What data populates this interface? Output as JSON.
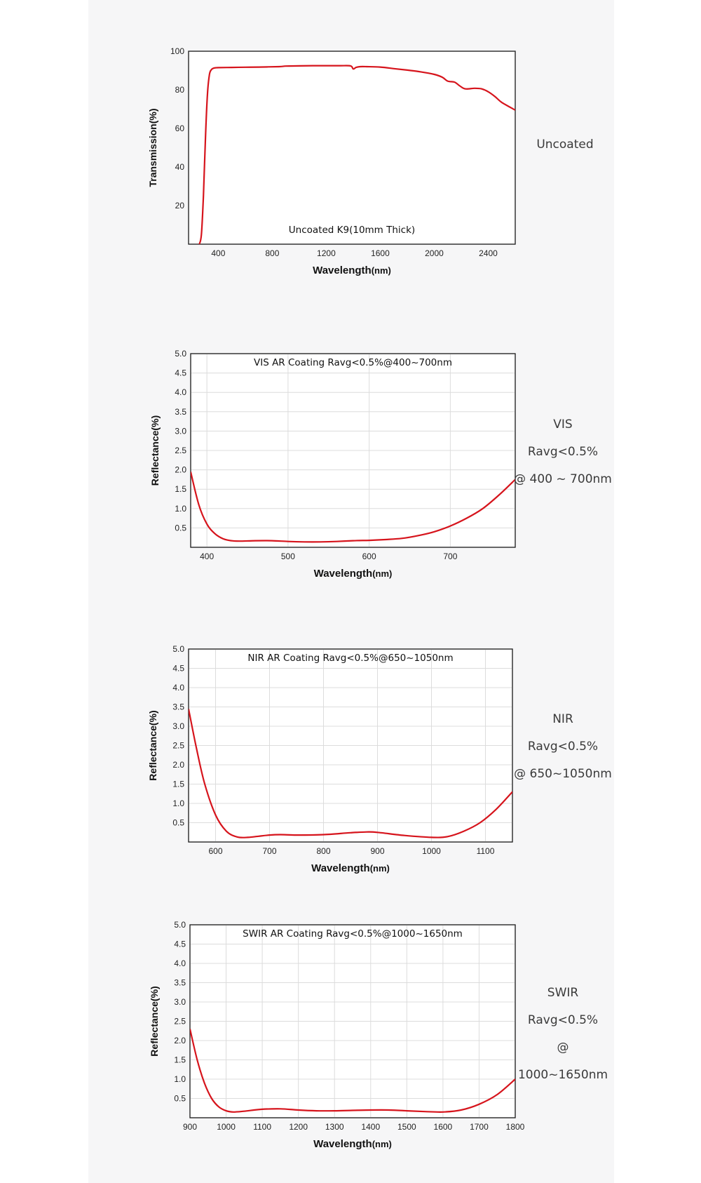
{
  "chart_data": [
    {
      "type": "line",
      "title": "Uncoated K9(10mm Thick)",
      "xlabel": "Wavelength",
      "xunit": "(nm)",
      "ylabel": "Transmission(%)",
      "side_label": [
        "Uncoated"
      ],
      "xlim": [
        180,
        2600
      ],
      "ylim": [
        0,
        100
      ],
      "xticks": [
        400,
        800,
        1200,
        1600,
        2000,
        2400
      ],
      "yticks": [
        20,
        40,
        60,
        80,
        100
      ],
      "ytick_labels": [
        "20",
        "40",
        "60",
        "80",
        "100"
      ],
      "grid": false,
      "series": [
        {
          "color": "#d6141c",
          "x": [
            260,
            275,
            290,
            305,
            320,
            335,
            350,
            365,
            380,
            400,
            500,
            600,
            700,
            850,
            900,
            1000,
            1100,
            1200,
            1300,
            1380,
            1400,
            1420,
            1450,
            1500,
            1600,
            1700,
            1800,
            1900,
            2000,
            2060,
            2100,
            2150,
            2190,
            2230,
            2300,
            2350,
            2400,
            2450,
            2500,
            2600
          ],
          "y": [
            0,
            5,
            25,
            55,
            78,
            88,
            90.5,
            91.2,
            91.4,
            91.5,
            91.6,
            91.7,
            91.8,
            92,
            92.3,
            92.4,
            92.5,
            92.5,
            92.5,
            92.4,
            90.8,
            91.6,
            92,
            92,
            91.8,
            91,
            90.2,
            89.3,
            88,
            86.5,
            84.5,
            84,
            82,
            80.5,
            80.8,
            80.5,
            79,
            76.5,
            73.5,
            69.5
          ]
        }
      ]
    },
    {
      "type": "line",
      "title": "VIS AR Coating Ravg<0.5%@400~700nm",
      "xlabel": "Wavelength",
      "xunit": "(nm)",
      "ylabel": "Reflectance(%)",
      "side_label": [
        "VIS",
        "Ravg<0.5%",
        "@ 400 ~ 700nm"
      ],
      "xlim": [
        380,
        780
      ],
      "ylim": [
        0,
        5
      ],
      "xticks": [
        400,
        500,
        600,
        700
      ],
      "yticks": [
        0.5,
        1,
        1.5,
        2,
        2.5,
        3,
        3.5,
        4,
        4.5,
        5
      ],
      "ytick_labels": [
        "0.5",
        "1.0",
        "1.5",
        "2.0",
        "2.5",
        "3.0",
        "3.5",
        "4.0",
        "4.5",
        "5.0"
      ],
      "grid": true,
      "series": [
        {
          "color": "#d6141c",
          "x": [
            380,
            390,
            400,
            410,
            420,
            430,
            440,
            460,
            480,
            500,
            520,
            540,
            560,
            580,
            600,
            620,
            640,
            660,
            680,
            700,
            720,
            740,
            760,
            780
          ],
          "y": [
            1.95,
            1.1,
            0.6,
            0.35,
            0.22,
            0.17,
            0.16,
            0.17,
            0.17,
            0.15,
            0.14,
            0.14,
            0.15,
            0.17,
            0.18,
            0.2,
            0.23,
            0.3,
            0.4,
            0.55,
            0.75,
            1.0,
            1.35,
            1.75
          ]
        }
      ]
    },
    {
      "type": "line",
      "title": "NIR AR Coating Ravg<0.5%@650~1050nm",
      "xlabel": "Wavelength",
      "xunit": "(nm)",
      "ylabel": "Reflectance(%)",
      "side_label": [
        "NIR",
        "Ravg<0.5%",
        "@ 650~1050nm"
      ],
      "xlim": [
        550,
        1150
      ],
      "ylim": [
        0,
        5
      ],
      "xticks": [
        600,
        700,
        800,
        900,
        1000,
        1100
      ],
      "yticks": [
        0.5,
        1,
        1.5,
        2,
        2.5,
        3,
        3.5,
        4,
        4.5,
        5
      ],
      "ytick_labels": [
        "0.5",
        "1.0",
        "1.5",
        "2.0",
        "2.5",
        "3.0",
        "3.5",
        "4.0",
        "4.5",
        "5.0"
      ],
      "grid": true,
      "series": [
        {
          "color": "#d6141c",
          "x": [
            550,
            565,
            580,
            600,
            620,
            640,
            660,
            680,
            700,
            720,
            750,
            800,
            850,
            880,
            900,
            950,
            1000,
            1030,
            1060,
            1090,
            1120,
            1150
          ],
          "y": [
            3.45,
            2.4,
            1.5,
            0.7,
            0.28,
            0.13,
            0.12,
            0.15,
            0.18,
            0.19,
            0.18,
            0.19,
            0.24,
            0.26,
            0.25,
            0.17,
            0.12,
            0.14,
            0.28,
            0.5,
            0.85,
            1.3
          ]
        }
      ]
    },
    {
      "type": "line",
      "title": "SWIR AR Coating Ravg<0.5%@1000~1650nm",
      "xlabel": "Wavelength",
      "xunit": "(nm)",
      "ylabel": "Reflectance(%)",
      "side_label": [
        "SWIR",
        "Ravg<0.5%",
        "@ 1000~1650nm"
      ],
      "xlim": [
        900,
        1800
      ],
      "ylim": [
        0,
        5
      ],
      "xticks": [
        900,
        1000,
        1100,
        1200,
        1300,
        1400,
        1500,
        1600,
        1700,
        1800
      ],
      "yticks": [
        0.5,
        1,
        1.5,
        2,
        2.5,
        3,
        3.5,
        4,
        4.5,
        5
      ],
      "ytick_labels": [
        "0.5",
        "1.0",
        "1.5",
        "2.0",
        "2.5",
        "3.0",
        "3.5",
        "4.0",
        "4.5",
        "5.0"
      ],
      "grid": true,
      "series": [
        {
          "color": "#d6141c",
          "x": [
            900,
            920,
            940,
            960,
            980,
            1000,
            1020,
            1050,
            1100,
            1150,
            1200,
            1250,
            1300,
            1350,
            1400,
            1450,
            1500,
            1550,
            1600,
            1650,
            1700,
            1750,
            1800
          ],
          "y": [
            2.3,
            1.5,
            0.9,
            0.5,
            0.28,
            0.18,
            0.15,
            0.17,
            0.22,
            0.23,
            0.2,
            0.18,
            0.18,
            0.19,
            0.2,
            0.2,
            0.18,
            0.16,
            0.15,
            0.2,
            0.35,
            0.6,
            1.0
          ]
        }
      ]
    }
  ]
}
